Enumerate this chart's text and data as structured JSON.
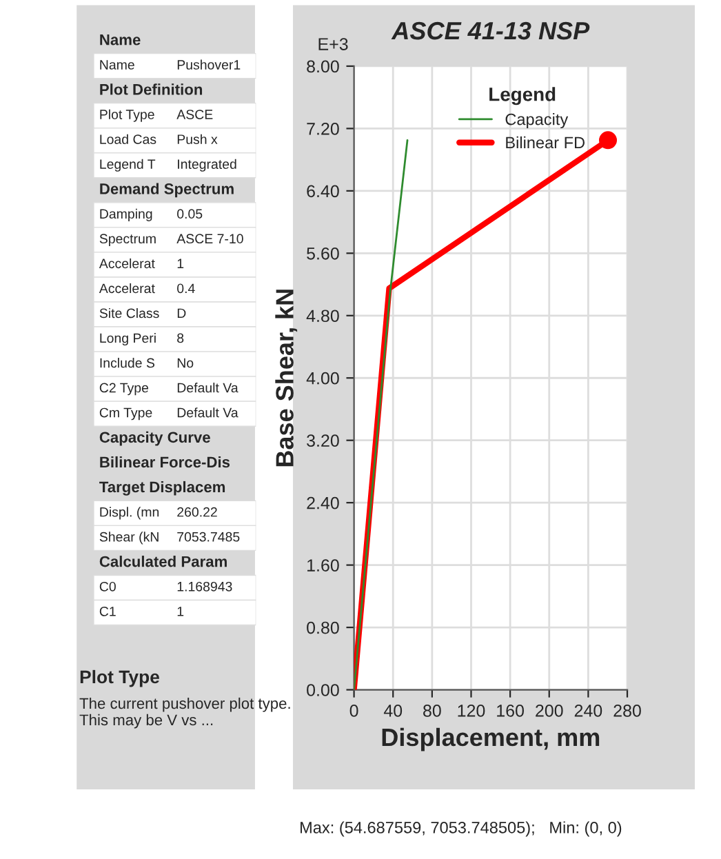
{
  "chart_data": [
    {
      "type": "other",
      "title": "Plot Type",
      "subtitle": "The current pushover plot type.  This may be V vs ...",
      "annotations": [
        "Name",
        "Name\tPushover1",
        "Plot Definition",
        "Plot Type\tASCE",
        "Load Cas\tPush x",
        "Legend T\tIntegrated",
        "Demand Spectrum",
        "Damping\t0.05",
        "Spectrum\tASCE 7-10",
        "Accelerat\t1",
        "Accelerat\t0.4",
        "Site Class\tD",
        "Long Peri\t8",
        "Include S\tNo",
        "C2 Type\tDefault Va",
        "Cm Type\tDefault Va",
        "Capacity Curve",
        "Bilinear Force-Dis",
        "Target Displacem",
        "Displ. (mn\t260.22",
        "Shear (kN\t7053.7485",
        "Calculated Param",
        "C0\t1.168943",
        "C1\t1"
      ]
    },
    {
      "type": "line",
      "title": "ASCE 41-13 NSP",
      "xlabel": "Displacement, mm",
      "ylabel": "Base Shear, kN",
      "legend_title": "Legend",
      "legend": "top right",
      "grid": true,
      "xlim": [
        0,
        280
      ],
      "xticks": [
        0,
        40,
        80,
        120,
        160,
        200,
        240,
        280
      ],
      "ylim": [
        0,
        8
      ],
      "yticks": [
        {
          "value": 0,
          "label": "0.00"
        },
        {
          "value": 0.8,
          "label": "0.80"
        },
        {
          "value": 1.6,
          "label": "1.60"
        },
        {
          "value": 2.4,
          "label": "2.40"
        },
        {
          "value": 3.2,
          "label": "3.20"
        },
        {
          "value": 4,
          "label": "4.00"
        },
        {
          "value": 4.8,
          "label": "4.80"
        },
        {
          "value": 5.6,
          "label": "5.60"
        },
        {
          "value": 6.4,
          "label": "6.40"
        },
        {
          "value": 7.2,
          "label": "7.20"
        },
        {
          "value": 8,
          "label": "8.00"
        }
      ],
      "series": [
        {
          "name": "Capacity",
          "color": "#2e8b2e",
          "x": [
            0,
            37,
            54.7
          ],
          "values": [
            0,
            5.1,
            7.05
          ]
        },
        {
          "name": "Bilinear FD",
          "color": "#ff0000",
          "x": [
            0,
            36,
            260.22
          ],
          "values": [
            0,
            5.15,
            7.05
          ]
        },
        {
          "type": "scatter",
          "color": "#ff0000",
          "marker": "circle",
          "x": [
            260.22
          ],
          "values": [
            7.05
          ]
        }
      ],
      "annotations": [
        "E+3",
        "Max: (54.687559, 7053.748505);   Min: (0, 0)"
      ]
    }
  ]
}
